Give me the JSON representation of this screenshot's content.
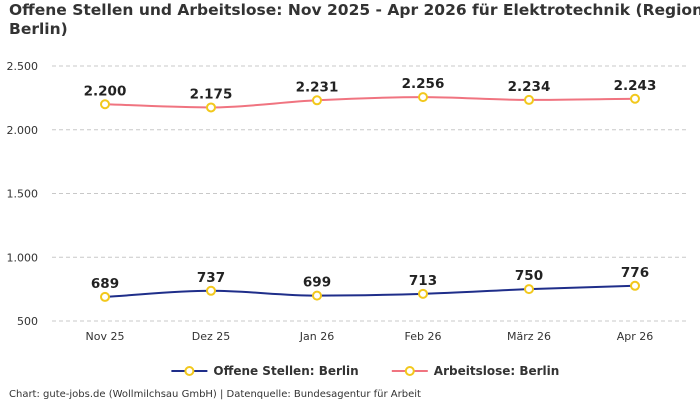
{
  "chart_data": {
    "type": "line",
    "title_lines": [
      "Offene Stellen und Arbeitslose: Nov 2025 - Apr 2026 für Elektrotechnik (Region",
      "Berlin)"
    ],
    "categories": [
      "Nov 25",
      "Dez 25",
      "Jan 26",
      "Feb 26",
      "März 26",
      "Apr 26"
    ],
    "y_ticks": [
      500,
      1000,
      1500,
      2000,
      2500
    ],
    "y_tick_labels": [
      "500",
      "1.000",
      "1.500",
      "2.000",
      "2.500"
    ],
    "ylim": [
      500,
      2500
    ],
    "grid": "horizontal-dashed",
    "legend_position": "bottom",
    "series": [
      {
        "name": "Offene Stellen: Berlin",
        "color": "#1f2e8a",
        "values": [
          689,
          737,
          699,
          713,
          750,
          776
        ],
        "labels": [
          "689",
          "737",
          "699",
          "713",
          "750",
          "776"
        ]
      },
      {
        "name": "Arbeitslose: Berlin",
        "color": "#f07480",
        "values": [
          2200,
          2175,
          2231,
          2256,
          2234,
          2243
        ],
        "labels": [
          "2.200",
          "2.175",
          "2.231",
          "2.256",
          "2.234",
          "2.243"
        ]
      }
    ],
    "marker_color": "#f2c81c"
  },
  "credit": "Chart: gute-jobs.de (Wollmilchsau GmbH) | Datenquelle: Bundesagentur für Arbeit"
}
